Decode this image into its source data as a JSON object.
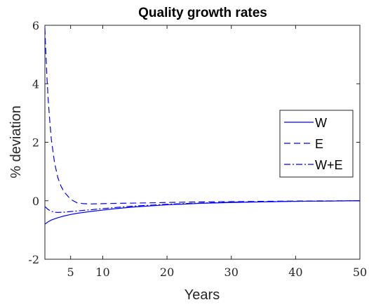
{
  "chart_data": {
    "type": "line",
    "title": "Quality growth rates",
    "xlabel": "Years",
    "ylabel": "% deviation",
    "xlim": [
      1,
      50
    ],
    "ylim": [
      -2,
      6
    ],
    "xticks": [
      5,
      10,
      20,
      30,
      40,
      50
    ],
    "yticks": [
      -2,
      0,
      2,
      4,
      6
    ],
    "grid": false,
    "legend_position": "right",
    "color": "#0000ff",
    "series": [
      {
        "name": "W",
        "style": "solid",
        "x": [
          1,
          1.5,
          2,
          3,
          4,
          5,
          6,
          8,
          10,
          12,
          15,
          20,
          25,
          30,
          35,
          40,
          45,
          50
        ],
        "y": [
          -0.8,
          -0.72,
          -0.66,
          -0.58,
          -0.52,
          -0.47,
          -0.43,
          -0.37,
          -0.32,
          -0.27,
          -0.21,
          -0.14,
          -0.09,
          -0.06,
          -0.04,
          -0.02,
          -0.01,
          0.0
        ]
      },
      {
        "name": "E",
        "style": "dashed",
        "x": [
          1,
          1.1,
          1.3,
          1.5,
          1.8,
          2,
          2.5,
          3,
          3.5,
          4,
          5,
          6,
          7,
          8,
          10,
          12,
          15,
          20,
          25,
          30,
          40,
          50
        ],
        "y": [
          5.9,
          5.3,
          4.3,
          3.5,
          2.6,
          2.1,
          1.3,
          0.8,
          0.5,
          0.3,
          0.05,
          -0.07,
          -0.1,
          -0.11,
          -0.1,
          -0.09,
          -0.08,
          -0.06,
          -0.04,
          -0.03,
          -0.01,
          0.0
        ]
      },
      {
        "name": "W+E",
        "style": "dashdot",
        "x": [
          1,
          1.5,
          2,
          2.5,
          3,
          4,
          5,
          6,
          8,
          10,
          12,
          15,
          20,
          25,
          30,
          40,
          50
        ],
        "y": [
          -0.2,
          -0.3,
          -0.36,
          -0.39,
          -0.4,
          -0.39,
          -0.37,
          -0.35,
          -0.31,
          -0.27,
          -0.23,
          -0.18,
          -0.12,
          -0.08,
          -0.05,
          -0.02,
          0.0
        ]
      }
    ]
  }
}
